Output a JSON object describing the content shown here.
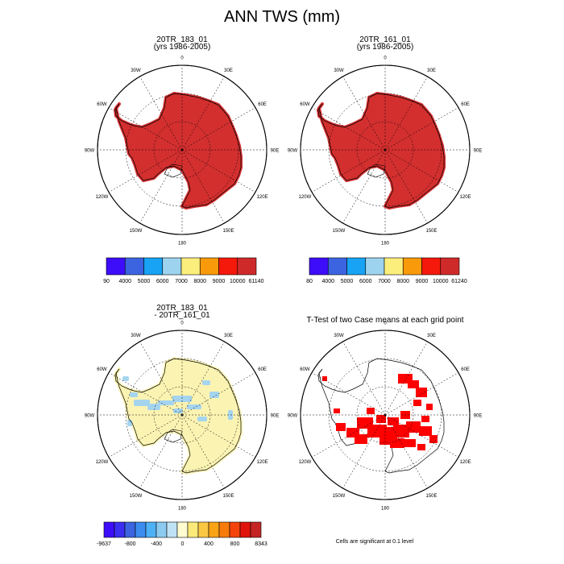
{
  "title": "ANN TWS (mm)",
  "panels": [
    {
      "id": "p1",
      "title_lines": [
        "20TR_183_01",
        "(yrs 1986-2005)"
      ],
      "fill": "#d32f2f",
      "colorbar": {
        "colors": [
          "#3d0dfa",
          "#3c64e0",
          "#18a3f5",
          "#9dd3ee",
          "#fbee7c",
          "#f89a0a",
          "#f5190b",
          "#cf2a2a"
        ],
        "labels": [
          "90",
          "4000",
          "5000",
          "6000",
          "7000",
          "8000",
          "9000",
          "10000",
          "61140"
        ]
      }
    },
    {
      "id": "p2",
      "title_lines": [
        "20TR_161_01",
        "(yrs 1986-2005)"
      ],
      "fill": "#d32f2f",
      "colorbar": {
        "colors": [
          "#3d0dfa",
          "#3c64e0",
          "#18a3f5",
          "#9dd3ee",
          "#fbee7c",
          "#f89a0a",
          "#f5190b",
          "#cf2a2a"
        ],
        "labels": [
          "80",
          "4000",
          "5000",
          "6000",
          "7000",
          "8000",
          "9000",
          "10000",
          "61240"
        ]
      }
    },
    {
      "id": "p3",
      "title_lines": [
        "20TR_183_01",
        " - 20TR_161_01"
      ],
      "fill": "#fbf3b2",
      "colorbar": {
        "colors": [
          "#3d0dfa",
          "#3b2ef0",
          "#3c64e0",
          "#3c8cf0",
          "#4fb1f5",
          "#8ccaf0",
          "#bfe2f5",
          "#fefcd0",
          "#fbea7a",
          "#fbc844",
          "#f9a416",
          "#f77b0a",
          "#f4430a",
          "#e0140c",
          "#c52424"
        ],
        "labels": [
          "-9637",
          "-800",
          "-400",
          "0",
          "400",
          "800",
          "8343"
        ]
      }
    },
    {
      "id": "p4",
      "title_lines": [
        "T-Test of two Case means at each grid point"
      ],
      "fill": "#ff0000",
      "note": "Cells are significant at 0.1 level"
    }
  ],
  "map_labels": {
    "lon_labels": [
      "0",
      "30E",
      "60E",
      "90E",
      "120E",
      "150E",
      "180",
      "150W",
      "120W",
      "90W",
      "60W",
      "30W"
    ]
  },
  "chart_data": [
    {
      "type": "heatmap",
      "title": "20TR_183_01",
      "subtitle": "(yrs 1986-2005)",
      "projection": "south-polar-stereographic",
      "colorbar_labels": [
        "90",
        "4000",
        "5000",
        "6000",
        "7000",
        "8000",
        "9000",
        "10000",
        "61140"
      ],
      "dominant_class": "10000-61140"
    },
    {
      "type": "heatmap",
      "title": "20TR_161_01",
      "subtitle": "(yrs 1986-2005)",
      "projection": "south-polar-stereographic",
      "colorbar_labels": [
        "80",
        "4000",
        "5000",
        "6000",
        "7000",
        "8000",
        "9000",
        "10000",
        "61240"
      ],
      "dominant_class": "10000-61240"
    },
    {
      "type": "heatmap",
      "title": "20TR_183_01 - 20TR_161_01",
      "projection": "south-polar-stereographic",
      "colorbar_labels": [
        "-9637",
        "-800",
        "-400",
        "0",
        "400",
        "800",
        "8343"
      ],
      "dominant_class": "0-400"
    },
    {
      "type": "heatmap",
      "title": "T-Test of two Case means at each grid point",
      "projection": "south-polar-stereographic",
      "note": "Cells are significant at 0.1 level"
    }
  ]
}
